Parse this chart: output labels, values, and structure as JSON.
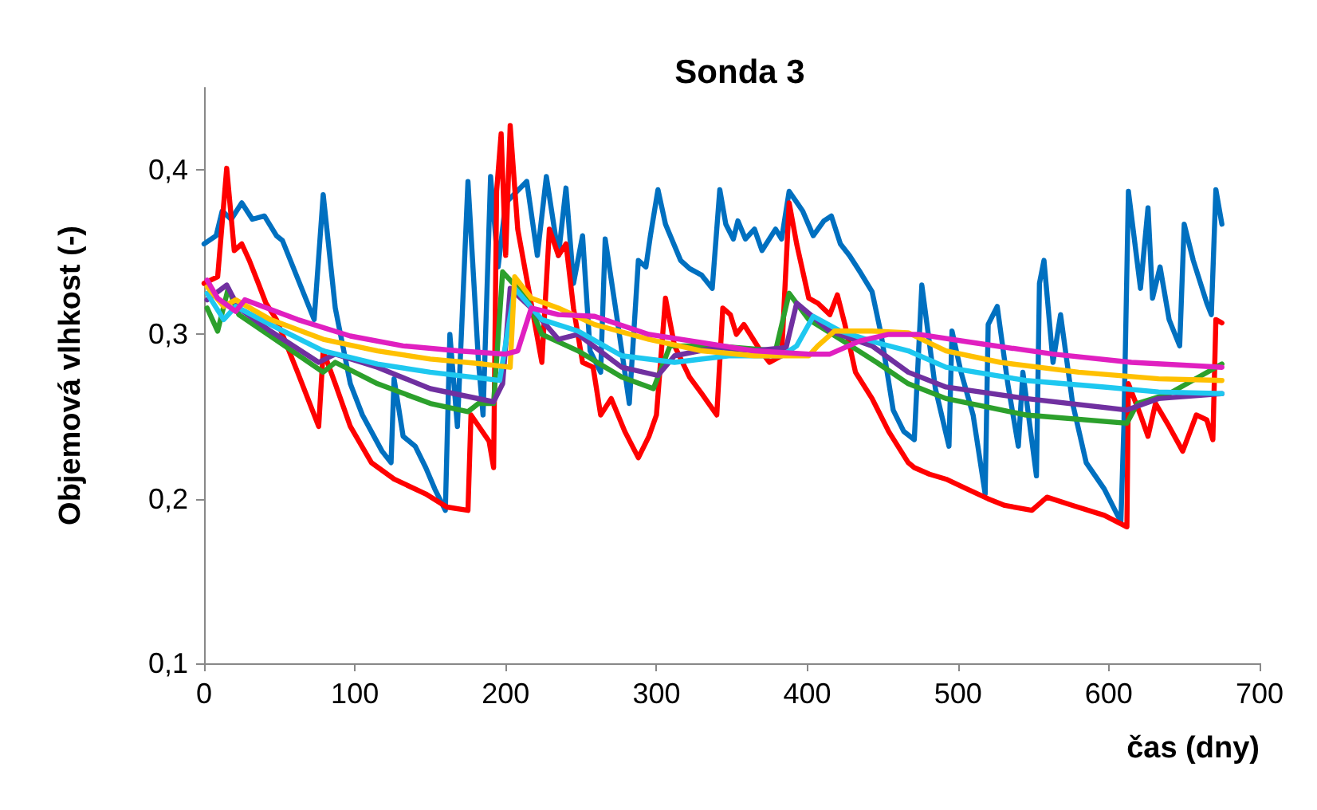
{
  "chart_data": {
    "type": "line",
    "title": "Sonda 3",
    "xlabel": "čas (dny)",
    "ylabel": "Objemová vlhkost (-)",
    "xlim": [
      0,
      700
    ],
    "xticks": [
      0,
      100,
      200,
      300,
      400,
      500,
      600,
      700
    ],
    "ylim": [
      0.1,
      0.45
    ],
    "yticks": [
      {
        "value": 0.1,
        "label": "0,1"
      },
      {
        "value": 0.2,
        "label": "0,2"
      },
      {
        "value": 0.3,
        "label": "0,3"
      },
      {
        "value": 0.4,
        "label": "0,4"
      }
    ],
    "grid": false,
    "marker": "none",
    "line_style": "solid",
    "series": [
      {
        "color": "#0070c0",
        "x": [
          0,
          8,
          12,
          18,
          25,
          32,
          40,
          48,
          52,
          73,
          79,
          87,
          97,
          105,
          118,
          124,
          126,
          132,
          140,
          147,
          153,
          160,
          163,
          168,
          175,
          182,
          185,
          190,
          195,
          200,
          214,
          221,
          227,
          235,
          240,
          245,
          251,
          256,
          263,
          266,
          274,
          282,
          288,
          293,
          296,
          301,
          306,
          316,
          322,
          330,
          337,
          342,
          346,
          351,
          354,
          359,
          365,
          370,
          379,
          383,
          388,
          397,
          404,
          411,
          416,
          422,
          428,
          435,
          443,
          449,
          457,
          464,
          471,
          476,
          485,
          494,
          496,
          502,
          510,
          518,
          520,
          526,
          533,
          540,
          543,
          552,
          554,
          557,
          563,
          568,
          576,
          585,
          597,
          608,
          610,
          613,
          621,
          626,
          629,
          634,
          640,
          647,
          650,
          656,
          665,
          668,
          671,
          675
        ],
        "values": [
          0.355,
          0.36,
          0.375,
          0.37,
          0.38,
          0.37,
          0.372,
          0.36,
          0.357,
          0.309,
          0.385,
          0.316,
          0.27,
          0.251,
          0.229,
          0.222,
          0.273,
          0.238,
          0.232,
          0.219,
          0.206,
          0.193,
          0.3,
          0.244,
          0.393,
          0.283,
          0.251,
          0.396,
          0.341,
          0.38,
          0.393,
          0.348,
          0.396,
          0.348,
          0.389,
          0.331,
          0.36,
          0.29,
          0.277,
          0.358,
          0.309,
          0.258,
          0.345,
          0.341,
          0.36,
          0.388,
          0.367,
          0.345,
          0.34,
          0.336,
          0.328,
          0.388,
          0.367,
          0.358,
          0.369,
          0.358,
          0.364,
          0.351,
          0.364,
          0.358,
          0.387,
          0.375,
          0.36,
          0.369,
          0.372,
          0.355,
          0.348,
          0.338,
          0.326,
          0.3,
          0.254,
          0.241,
          0.236,
          0.33,
          0.267,
          0.232,
          0.302,
          0.277,
          0.251,
          0.203,
          0.306,
          0.317,
          0.27,
          0.232,
          0.277,
          0.214,
          0.331,
          0.345,
          0.283,
          0.312,
          0.258,
          0.222,
          0.206,
          0.186,
          0.244,
          0.387,
          0.328,
          0.377,
          0.322,
          0.341,
          0.309,
          0.293,
          0.367,
          0.345,
          0.319,
          0.312,
          0.388,
          0.367
        ]
      },
      {
        "color": "#ff0000",
        "x": [
          0,
          9,
          15,
          20,
          25,
          30,
          36,
          41,
          48,
          62,
          76,
          79,
          87,
          97,
          111,
          126,
          147,
          161,
          175,
          177,
          189,
          192,
          194,
          197,
          200,
          203,
          208,
          224,
          229,
          235,
          240,
          245,
          251,
          258,
          263,
          270,
          279,
          288,
          295,
          300,
          306,
          312,
          322,
          330,
          340,
          344,
          349,
          353,
          358,
          369,
          375,
          383,
          388,
          393,
          401,
          407,
          415,
          420,
          425,
          432,
          443,
          454,
          467,
          471,
          481,
          492,
          506,
          520,
          531,
          549,
          559,
          576,
          597,
          612,
          613,
          621,
          626,
          631,
          640,
          649,
          658,
          665,
          669,
          671,
          675
        ],
        "values": [
          0.331,
          0.335,
          0.401,
          0.351,
          0.355,
          0.345,
          0.331,
          0.319,
          0.309,
          0.277,
          0.244,
          0.29,
          0.27,
          0.244,
          0.222,
          0.212,
          0.203,
          0.195,
          0.193,
          0.251,
          0.235,
          0.219,
          0.387,
          0.422,
          0.348,
          0.427,
          0.364,
          0.283,
          0.364,
          0.348,
          0.355,
          0.316,
          0.283,
          0.28,
          0.251,
          0.261,
          0.241,
          0.225,
          0.238,
          0.251,
          0.322,
          0.293,
          0.274,
          0.264,
          0.251,
          0.316,
          0.312,
          0.3,
          0.306,
          0.29,
          0.283,
          0.287,
          0.38,
          0.355,
          0.322,
          0.319,
          0.312,
          0.324,
          0.306,
          0.277,
          0.261,
          0.241,
          0.222,
          0.219,
          0.215,
          0.212,
          0.206,
          0.2,
          0.196,
          0.193,
          0.201,
          0.196,
          0.19,
          0.183,
          0.27,
          0.251,
          0.238,
          0.258,
          0.244,
          0.229,
          0.251,
          0.248,
          0.236,
          0.309,
          0.307
        ]
      },
      {
        "color": "#2ca02c",
        "x": [
          2,
          9,
          16,
          23,
          44,
          79,
          87,
          115,
          150,
          175,
          182,
          192,
          198,
          214,
          224,
          248,
          277,
          298,
          309,
          340,
          379,
          388,
          401,
          422,
          446,
          467,
          492,
          545,
          612,
          619,
          640,
          675
        ],
        "values": [
          0.316,
          0.302,
          0.328,
          0.312,
          0.299,
          0.277,
          0.283,
          0.27,
          0.258,
          0.253,
          0.258,
          0.258,
          0.338,
          0.322,
          0.3,
          0.29,
          0.274,
          0.267,
          0.293,
          0.293,
          0.29,
          0.325,
          0.309,
          0.297,
          0.283,
          0.27,
          0.261,
          0.251,
          0.246,
          0.258,
          0.264,
          0.282
        ]
      },
      {
        "color": "#7030a0",
        "x": [
          2,
          15,
          23,
          44,
          76,
          87,
          115,
          150,
          192,
          198,
          203,
          217,
          235,
          248,
          277,
          301,
          312,
          340,
          365,
          386,
          393,
          415,
          443,
          467,
          492,
          545,
          612,
          633,
          675
        ],
        "values": [
          0.321,
          0.33,
          0.316,
          0.302,
          0.283,
          0.288,
          0.28,
          0.267,
          0.259,
          0.27,
          0.328,
          0.316,
          0.297,
          0.3,
          0.28,
          0.275,
          0.287,
          0.292,
          0.29,
          0.292,
          0.319,
          0.302,
          0.293,
          0.277,
          0.268,
          0.261,
          0.254,
          0.261,
          0.264
        ]
      },
      {
        "color": "#1ec8f0",
        "x": [
          2,
          13,
          21,
          44,
          79,
          115,
          150,
          196,
          206,
          224,
          248,
          277,
          312,
          348,
          383,
          393,
          404,
          422,
          446,
          467,
          492,
          545,
          597,
          633,
          675
        ],
        "values": [
          0.325,
          0.309,
          0.317,
          0.306,
          0.29,
          0.282,
          0.277,
          0.272,
          0.328,
          0.309,
          0.302,
          0.287,
          0.283,
          0.287,
          0.287,
          0.293,
          0.311,
          0.302,
          0.295,
          0.29,
          0.28,
          0.272,
          0.268,
          0.265,
          0.264
        ]
      },
      {
        "color": "#ffc000",
        "x": [
          2,
          13,
          21,
          44,
          79,
          115,
          150,
          185,
          203,
          206,
          217,
          235,
          259,
          295,
          330,
          365,
          401,
          407,
          418,
          443,
          467,
          492,
          528,
          580,
          633,
          675
        ],
        "values": [
          0.329,
          0.317,
          0.321,
          0.309,
          0.297,
          0.29,
          0.285,
          0.282,
          0.28,
          0.335,
          0.322,
          0.316,
          0.306,
          0.297,
          0.29,
          0.287,
          0.287,
          0.293,
          0.302,
          0.302,
          0.301,
          0.29,
          0.283,
          0.277,
          0.273,
          0.272
        ]
      },
      {
        "color": "#e020c0",
        "x": [
          2,
          9,
          21,
          27,
          62,
          97,
          132,
          168,
          200,
          208,
          217,
          235,
          259,
          295,
          330,
          365,
          401,
          415,
          435,
          454,
          474,
          510,
          563,
          615,
          675
        ],
        "values": [
          0.333,
          0.322,
          0.314,
          0.321,
          0.309,
          0.299,
          0.293,
          0.29,
          0.288,
          0.29,
          0.316,
          0.312,
          0.311,
          0.3,
          0.295,
          0.29,
          0.288,
          0.288,
          0.296,
          0.3,
          0.3,
          0.295,
          0.288,
          0.283,
          0.28
        ]
      }
    ]
  }
}
